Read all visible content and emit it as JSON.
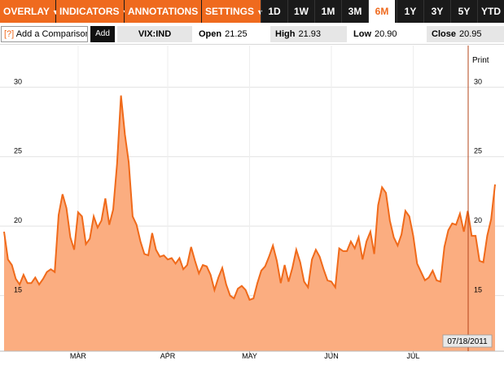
{
  "toolbar": {
    "menus": [
      {
        "label": "OVERLAY",
        "caret": "▼"
      },
      {
        "label": "INDICATORS",
        "caret": "▼"
      },
      {
        "label": "ANNOTATIONS",
        "caret": "▼"
      },
      {
        "label": "SETTINGS",
        "caret": "▼"
      }
    ],
    "ranges": [
      "1D",
      "1W",
      "1M",
      "3M",
      "6M",
      "1Y",
      "3Y",
      "5Y",
      "YTD"
    ],
    "active_range": "6M"
  },
  "quote": {
    "help_label": "[?]",
    "compare_placeholder": "Add a Comparison",
    "add_label": "Add",
    "symbol": "VIX:IND",
    "open_label": "Open",
    "open_value": "21.25",
    "high_label": "High",
    "high_value": "21.93",
    "low_label": "Low",
    "low_value": "20.90",
    "close_label": "Close",
    "close_value": "20.95"
  },
  "print_label": "Print",
  "crosshair_date": "07/18/2011",
  "colors": {
    "accent": "#ef6a1e",
    "fill": "#fbad80",
    "line": "#f06a1a"
  },
  "chart_data": {
    "type": "area",
    "ylim": [
      11,
      33
    ],
    "yticks": [
      "15",
      "20",
      "25",
      "30"
    ],
    "xticks": [
      "MAR",
      "APR",
      "MAY",
      "JUN",
      "JUL"
    ],
    "grid": true,
    "series": [
      {
        "values": [
          19.6,
          17.6,
          17.2,
          16.2,
          15.8,
          16.5,
          15.9,
          15.9,
          16.3,
          15.8,
          16.2,
          16.7,
          16.9,
          16.7,
          20.8,
          22.3,
          21.3,
          19.2,
          18.3,
          21.0,
          20.7,
          18.7,
          19.1,
          20.7,
          19.9,
          20.4,
          22.0,
          20.1,
          21.2,
          24.5,
          29.4,
          26.6,
          24.6,
          20.7,
          20.1,
          18.9,
          18.0,
          17.9,
          19.5,
          18.3,
          17.8,
          17.9,
          17.6,
          17.7,
          17.3,
          17.7,
          16.9,
          17.2,
          18.5,
          17.5,
          16.6,
          17.2,
          17.1,
          16.5,
          15.4,
          16.3,
          17.0,
          15.8,
          15.0,
          14.8,
          15.5,
          15.7,
          15.4,
          14.7,
          14.8,
          15.9,
          16.8,
          17.1,
          17.8,
          18.6,
          17.5,
          15.9,
          17.2,
          16.0,
          17.0,
          18.3,
          17.4,
          16.0,
          15.6,
          17.6,
          18.3,
          17.8,
          16.9,
          16.1,
          16.0,
          15.6,
          18.4,
          18.2,
          18.2,
          18.9,
          18.4,
          19.2,
          17.6,
          18.9,
          19.6,
          18.0,
          21.5,
          22.8,
          22.4,
          20.4,
          19.2,
          18.6,
          19.4,
          21.1,
          20.7,
          19.3,
          17.3,
          16.7,
          16.1,
          16.3,
          16.8,
          16.1,
          16.0,
          18.5,
          19.7,
          20.2,
          20.1,
          20.9,
          19.6,
          21.1,
          19.3,
          19.3,
          17.5,
          17.4,
          19.3,
          20.5,
          23.0
        ]
      }
    ]
  }
}
